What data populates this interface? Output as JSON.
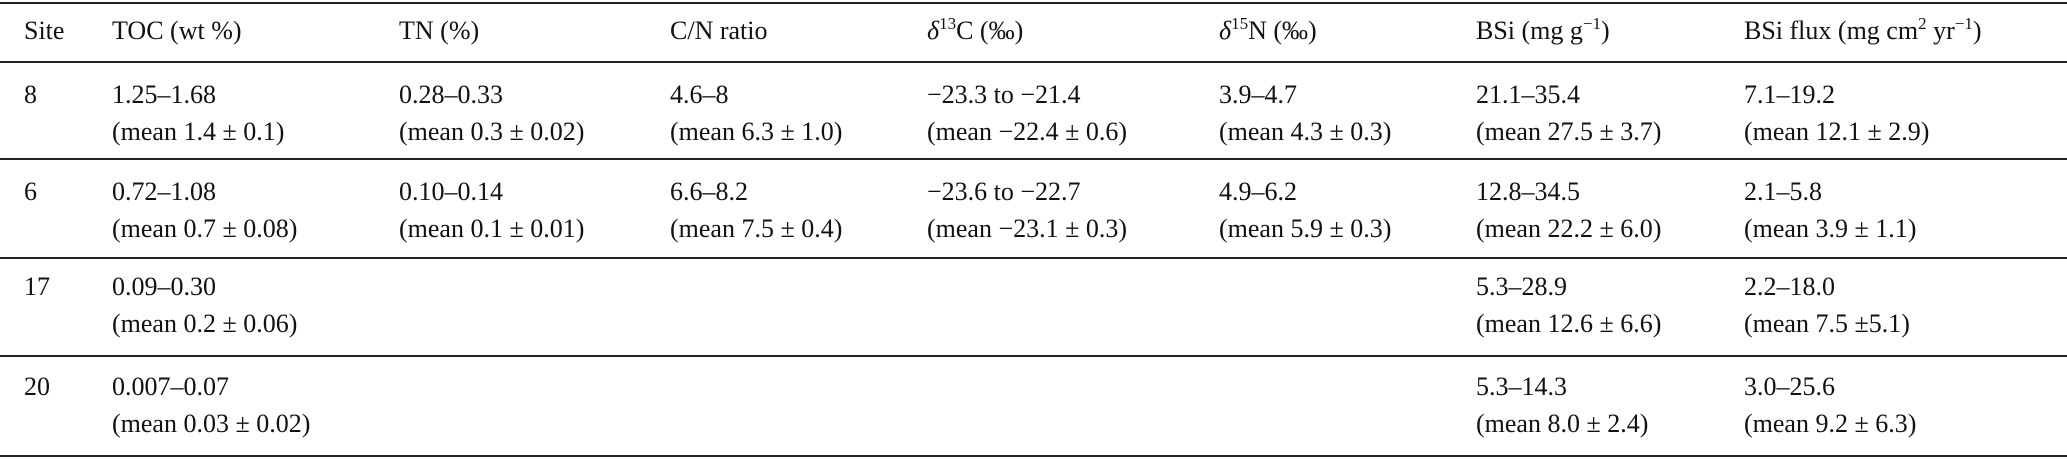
{
  "table": {
    "headers": [
      [
        "Site"
      ],
      [
        "TOC (wt %)"
      ],
      [
        "TN (%)"
      ],
      [
        "C/N ratio"
      ],
      [
        {
          "italic": "δ"
        },
        {
          "sup": "13"
        },
        "C (‰)"
      ],
      [
        {
          "italic": "δ"
        },
        {
          "sup": "15"
        },
        "N (‰)"
      ],
      [
        "BSi (mg g",
        {
          "sup": "−1"
        },
        ")"
      ],
      [
        "BSi flux (mg cm",
        {
          "sup": "2"
        },
        " yr",
        {
          "sup": "−1"
        },
        ")"
      ]
    ],
    "rows": [
      [
        "8",
        [
          "1.25–1.68",
          "(mean 1.4 ± 0.1)"
        ],
        [
          "0.28–0.33",
          "(mean 0.3 ± 0.02)"
        ],
        [
          "4.6–8",
          "(mean 6.3 ± 1.0)"
        ],
        [
          "−23.3 to −21.4",
          "(mean −22.4 ± 0.6)"
        ],
        [
          "3.9–4.7",
          "(mean 4.3 ± 0.3)"
        ],
        [
          "21.1–35.4",
          "(mean 27.5 ± 3.7)"
        ],
        [
          "7.1–19.2",
          "(mean 12.1 ± 2.9)"
        ]
      ],
      [
        "6",
        [
          "0.72–1.08",
          "(mean 0.7 ± 0.08)"
        ],
        [
          "0.10–0.14",
          "(mean 0.1 ± 0.01)"
        ],
        [
          "6.6–8.2",
          "(mean 7.5 ± 0.4)"
        ],
        [
          "−23.6 to −22.7",
          "(mean −23.1 ± 0.3)"
        ],
        [
          "4.9–6.2",
          "(mean 5.9 ± 0.3)"
        ],
        [
          "12.8–34.5",
          "(mean 22.2 ± 6.0)"
        ],
        [
          "2.1–5.8",
          "(mean 3.9 ± 1.1)"
        ]
      ],
      [
        "17",
        [
          "0.09–0.30",
          "(mean 0.2 ± 0.06)"
        ],
        null,
        null,
        null,
        null,
        [
          "5.3–28.9",
          "(mean 12.6 ± 6.6)"
        ],
        [
          "2.2–18.0",
          "(mean 7.5 ±5.1)"
        ]
      ],
      [
        "20",
        [
          "0.007–0.07",
          "(mean 0.03 ± 0.02)"
        ],
        null,
        null,
        null,
        null,
        [
          "5.3–14.3",
          "(mean 8.0 ± 2.4)"
        ],
        [
          "3.0–25.6",
          "(mean 9.2 ± 6.3)"
        ]
      ]
    ]
  }
}
